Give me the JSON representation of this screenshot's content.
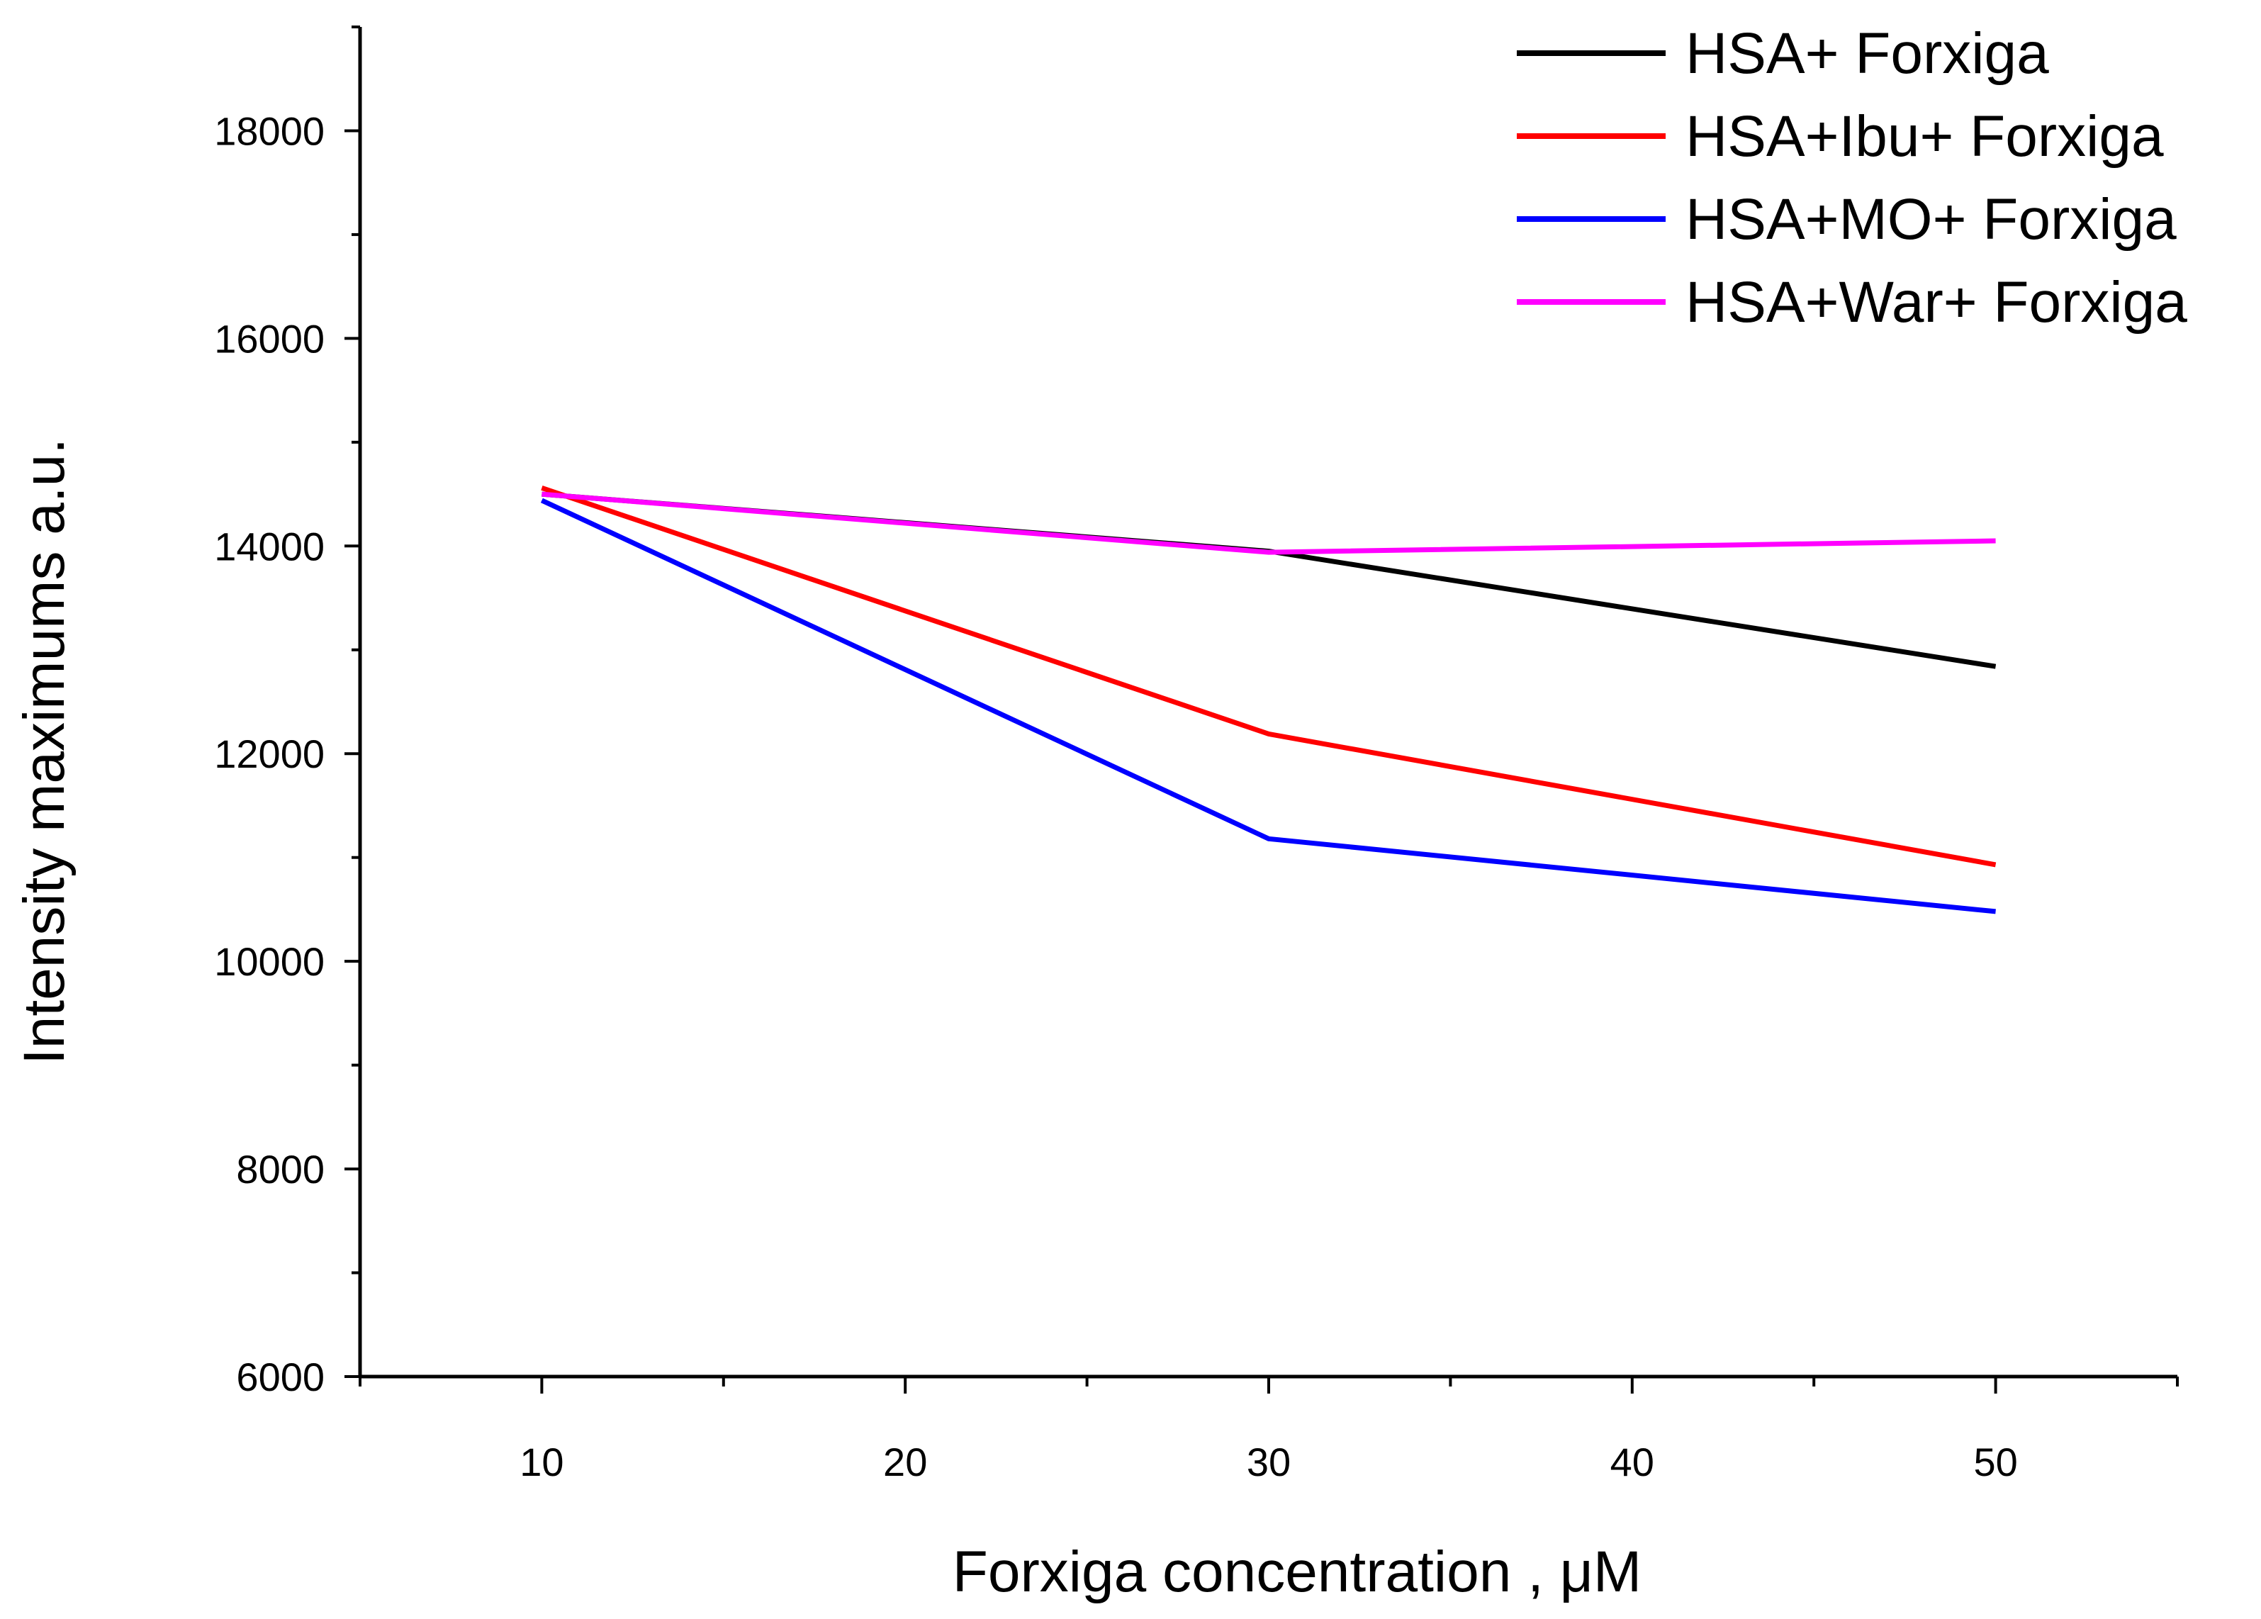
{
  "chart_data": {
    "type": "line",
    "xlabel": "Forxiga concentration , μM",
    "ylabel": "Intensity maximums  a.u.",
    "x": [
      10,
      30,
      50
    ],
    "xlim": [
      5,
      55
    ],
    "ylim": [
      6000,
      19000
    ],
    "xticks": [
      10,
      20,
      30,
      40,
      50
    ],
    "xtick_labels": [
      "10",
      "20",
      "30",
      "40",
      "50"
    ],
    "yticks": [
      6000,
      8000,
      10000,
      12000,
      14000,
      16000,
      18000
    ],
    "ytick_labels": [
      "6000",
      "8000",
      "10000",
      "12000",
      "14000",
      "16000",
      "18000"
    ],
    "grid": false,
    "legend_position": "top-right",
    "series": [
      {
        "name": "HSA+ Forxiga",
        "color": "#000000",
        "values": [
          14500,
          13950,
          12840
        ]
      },
      {
        "name": "HSA+Ibu+ Forxiga",
        "color": "#ff0000",
        "values": [
          14560,
          12190,
          10930
        ]
      },
      {
        "name": "HSA+MO+ Forxiga",
        "color": "#0000ff",
        "values": [
          14440,
          11180,
          10480
        ]
      },
      {
        "name": "HSA+War+ Forxiga",
        "color": "#ff00ff",
        "values": [
          14500,
          13940,
          14050
        ]
      }
    ]
  }
}
